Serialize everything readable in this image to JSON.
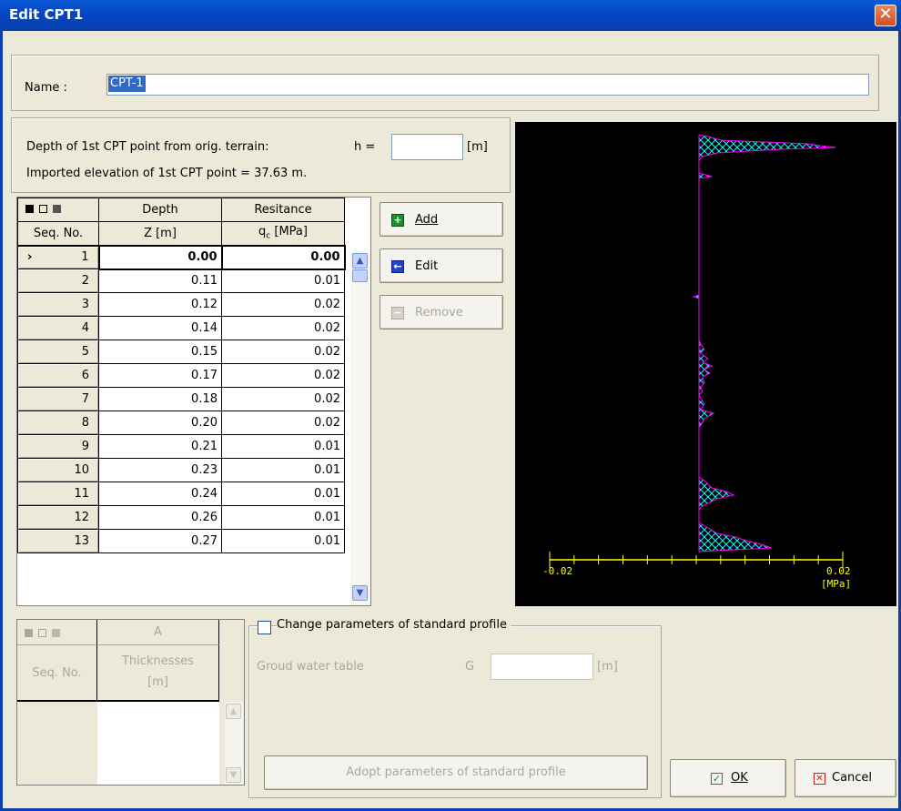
{
  "window": {
    "title": "Edit CPT1",
    "close_glyph": "✕"
  },
  "name_section": {
    "label": "Name :",
    "value": "CPT-1"
  },
  "depth_section": {
    "depth_label": "Depth of 1st CPT point from orig. terrain:",
    "h_label": "h =",
    "h_value": "",
    "h_unit": "[m]",
    "imported_elevation": "Imported elevation of 1st CPT point = 37.63 m."
  },
  "cpt_table": {
    "headers": {
      "seq_top": "",
      "seq": "Seq. No.",
      "depth_top": "Depth",
      "depth": "Z [m]",
      "res_top": "Resitance",
      "res_main": "q",
      "res_sub": "c",
      "res_unit": " [MPa]"
    },
    "rows": [
      {
        "seq": "1",
        "depth": "0.00",
        "res": "0.00"
      },
      {
        "seq": "2",
        "depth": "0.11",
        "res": "0.01"
      },
      {
        "seq": "3",
        "depth": "0.12",
        "res": "0.02"
      },
      {
        "seq": "4",
        "depth": "0.14",
        "res": "0.02"
      },
      {
        "seq": "5",
        "depth": "0.15",
        "res": "0.02"
      },
      {
        "seq": "6",
        "depth": "0.17",
        "res": "0.02"
      },
      {
        "seq": "7",
        "depth": "0.18",
        "res": "0.02"
      },
      {
        "seq": "8",
        "depth": "0.20",
        "res": "0.02"
      },
      {
        "seq": "9",
        "depth": "0.21",
        "res": "0.01"
      },
      {
        "seq": "10",
        "depth": "0.23",
        "res": "0.01"
      },
      {
        "seq": "11",
        "depth": "0.24",
        "res": "0.01"
      },
      {
        "seq": "12",
        "depth": "0.26",
        "res": "0.01"
      },
      {
        "seq": "13",
        "depth": "0.27",
        "res": "0.01"
      }
    ],
    "current_row_marker": "›"
  },
  "buttons": {
    "add": "Add",
    "edit": "Edit",
    "remove": "Remove",
    "ok": "OK",
    "cancel": "Cancel",
    "adopt": "Adopt parameters of standard profile"
  },
  "chart_data": {
    "type": "line",
    "x_axis": {
      "min_label": "-0.02",
      "max_label": "0.02",
      "unit_label": "[MPa]",
      "range": [
        -0.02,
        0.02
      ]
    },
    "colors": {
      "background": "#000000",
      "axis": "#ffff00",
      "curve": "#ff00ff",
      "hatch": "#00ffff"
    }
  },
  "profile_section": {
    "layer_table": {
      "col_a": "A",
      "seq_label": "Seq. No.",
      "thick_top": "Thicknesses",
      "thick_unit": "[m]"
    },
    "checkbox_label": "Change parameters of standard profile",
    "gwt_label": "Groud water table",
    "gwt_symbol": "G",
    "gwt_value": "",
    "gwt_unit": "[m]"
  },
  "icons": {
    "add": "plus-icon",
    "edit": "edit-arrow-icon",
    "remove": "minus-icon",
    "ok": "check-icon",
    "cancel": "x-icon"
  }
}
